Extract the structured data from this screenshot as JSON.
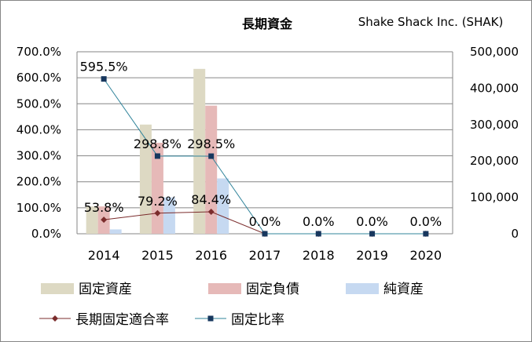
{
  "chart_data": {
    "type": "bar",
    "title": "長期資金",
    "subtitle": "Shake Shack Inc. (SHAK)",
    "categories": [
      "2014",
      "2015",
      "2016",
      "2017",
      "2018",
      "2019",
      "2020"
    ],
    "left_axis": {
      "min": 0,
      "max": 700,
      "step": 100,
      "ticks": [
        "0.0%",
        "100.0%",
        "200.0%",
        "300.0%",
        "400.0%",
        "500.0%",
        "600.0%",
        "700.0%"
      ]
    },
    "right_axis": {
      "min": 0,
      "max": 500000,
      "step": 100000,
      "ticks": [
        "0",
        "100,000",
        "200,000",
        "300,000",
        "400,000",
        "500,000"
      ]
    },
    "grid": true,
    "legend_position": "bottom",
    "bar_series": [
      {
        "name": "固定資産",
        "color": "#ddd9c3",
        "values": [
          75000,
          300000,
          453000,
          0,
          0,
          0,
          0
        ]
      },
      {
        "name": "固定負債",
        "color": "#e6b9b8",
        "values": [
          75000,
          250000,
          352000,
          0,
          0,
          0,
          0
        ]
      },
      {
        "name": "純資産",
        "color": "#c6d9f1",
        "values": [
          12000,
          100000,
          152000,
          0,
          0,
          0,
          0
        ]
      }
    ],
    "line_series": [
      {
        "name": "長期固定適合率",
        "color": "#7b2c2c",
        "marker": "diamond",
        "values": [
          53.8,
          79.2,
          84.4,
          0,
          0,
          0,
          0
        ],
        "labels": [
          "53.8%",
          "79.2%",
          "84.4%",
          "",
          "",
          "",
          ""
        ]
      },
      {
        "name": "固定比率",
        "color": "#31849b",
        "marker_color": "#17375e",
        "marker": "square",
        "values": [
          595.5,
          298.8,
          298.5,
          0,
          0,
          0,
          0
        ],
        "labels": [
          "595.5%",
          "298.8%",
          "298.5%",
          "0.0%",
          "0.0%",
          "0.0%",
          "0.0%"
        ]
      }
    ]
  }
}
